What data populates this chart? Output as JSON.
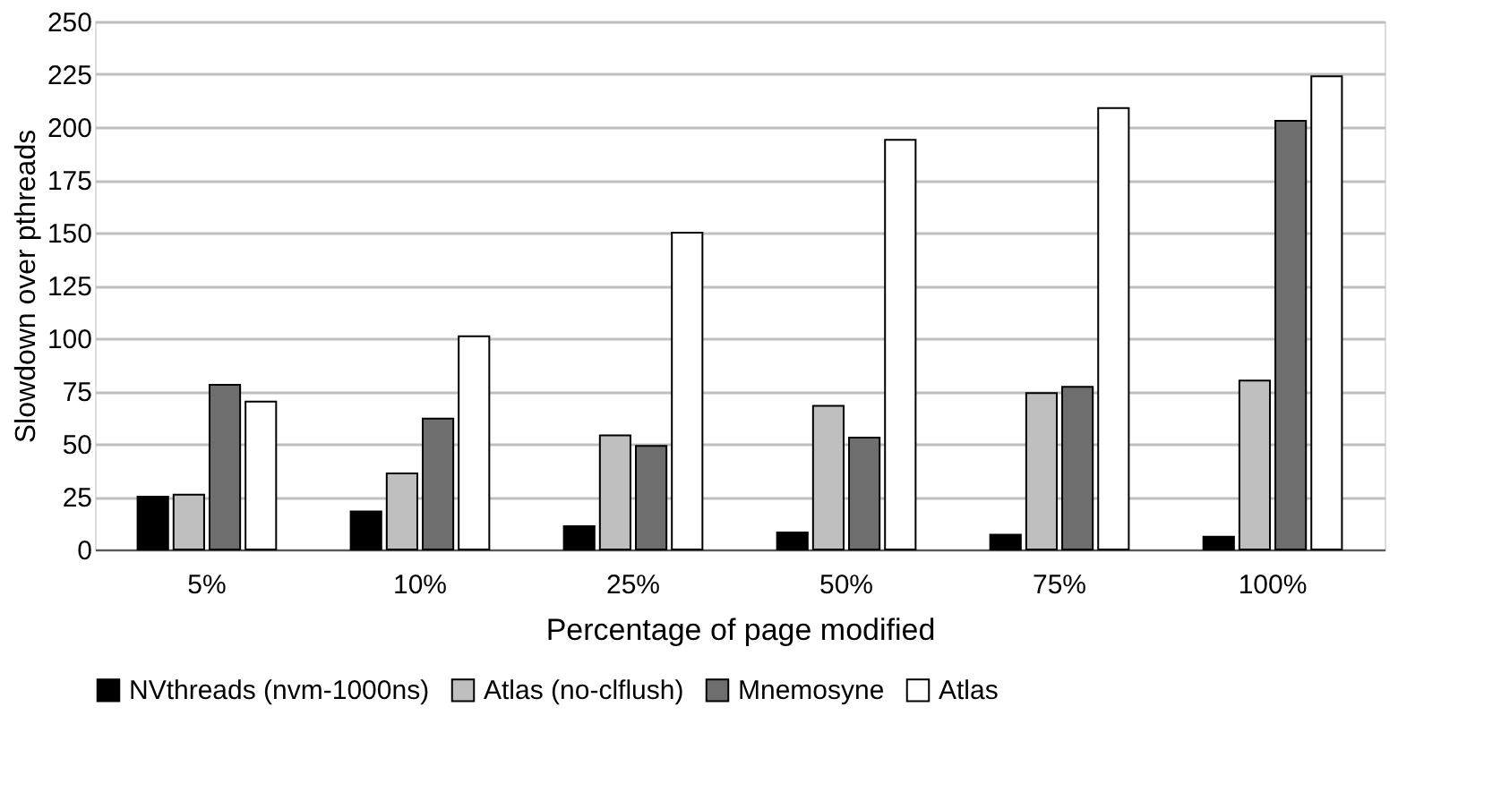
{
  "chart_data": {
    "type": "bar",
    "xlabel": "Percentage of page modified",
    "ylabel": "Slowdown over pthreads",
    "categories": [
      "5%",
      "10%",
      "25%",
      "50%",
      "75%",
      "100%"
    ],
    "series": [
      {
        "name": "NVthreads (nvm-1000ns)",
        "color": "#000000",
        "values": [
          25,
          18,
          11,
          8,
          7,
          6
        ]
      },
      {
        "name": "Atlas (no-clflush)",
        "color": "#bfbfbf",
        "values": [
          26,
          36,
          54,
          68,
          74,
          80
        ]
      },
      {
        "name": "Mnemosyne",
        "color": "#6e6e6e",
        "values": [
          78,
          62,
          49,
          53,
          77,
          203
        ]
      },
      {
        "name": "Atlas",
        "color": "#ffffff",
        "values": [
          70,
          101,
          150,
          194,
          209,
          224
        ]
      }
    ],
    "ylim": [
      0,
      250
    ],
    "yticks": [
      0,
      25,
      50,
      75,
      100,
      125,
      150,
      175,
      200,
      225,
      250
    ],
    "grid": "y",
    "legend": "bottom"
  }
}
